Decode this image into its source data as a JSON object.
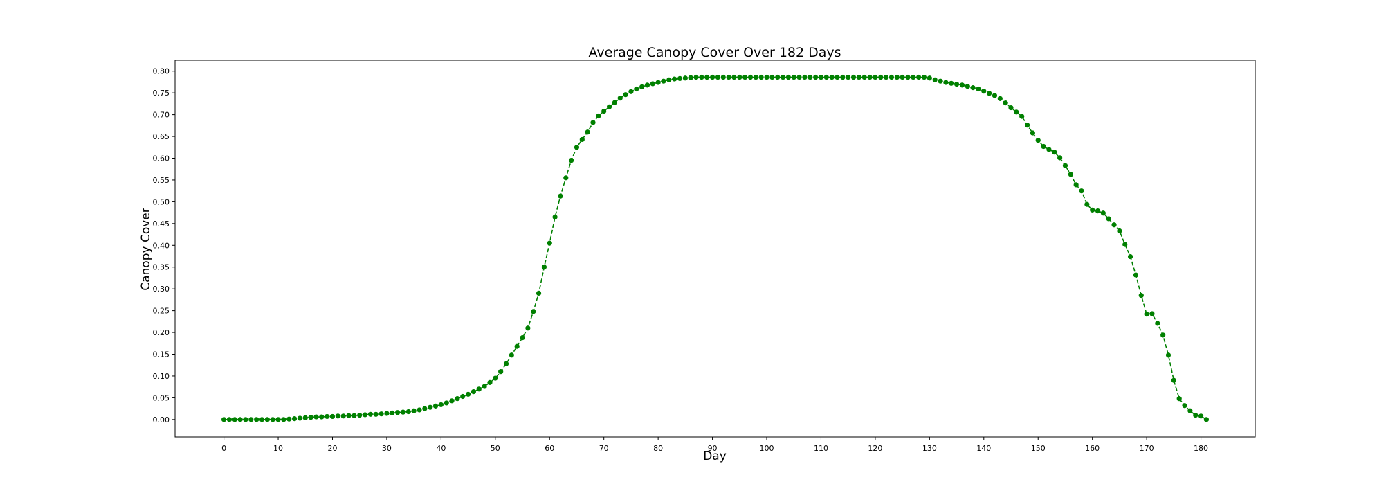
{
  "chart_data": {
    "type": "line",
    "title": "Average Canopy Cover Over 182 Days",
    "xlabel": "Day",
    "ylabel": "Canopy Cover",
    "xlim": [
      -9,
      190
    ],
    "ylim": [
      -0.04,
      0.825
    ],
    "xticks": [
      "0",
      "10",
      "20",
      "30",
      "40",
      "50",
      "60",
      "70",
      "80",
      "90",
      "100",
      "110",
      "120",
      "130",
      "140",
      "150",
      "160",
      "170",
      "180"
    ],
    "yticks": [
      "0.00",
      "0.05",
      "0.10",
      "0.15",
      "0.20",
      "0.25",
      "0.30",
      "0.35",
      "0.40",
      "0.45",
      "0.50",
      "0.55",
      "0.60",
      "0.65",
      "0.70",
      "0.75",
      "0.80"
    ],
    "grid": false,
    "legend": "none",
    "line_style": "dashed",
    "marker": "circle",
    "color": "#008000",
    "series": [
      {
        "x": [
          0,
          1,
          2,
          3,
          4,
          5,
          6,
          7,
          8,
          9,
          10,
          11,
          12,
          13,
          14,
          15,
          16,
          17,
          18,
          19,
          20,
          21,
          22,
          23,
          24,
          25,
          26,
          27,
          28,
          29,
          30,
          31,
          32,
          33,
          34,
          35,
          36,
          37,
          38,
          39,
          40,
          41,
          42,
          43,
          44,
          45,
          46,
          47,
          48,
          49,
          50,
          51,
          52,
          53,
          54,
          55,
          56,
          57,
          58,
          59,
          60,
          61,
          62,
          63,
          64,
          65,
          66,
          67,
          68,
          69,
          70,
          71,
          72,
          73,
          74,
          75,
          76,
          77,
          78,
          79,
          80,
          81,
          82,
          83,
          84,
          85,
          86,
          87,
          88,
          89,
          90,
          91,
          92,
          93,
          94,
          95,
          96,
          97,
          98,
          99,
          100,
          101,
          102,
          103,
          104,
          105,
          106,
          107,
          108,
          109,
          110,
          111,
          112,
          113,
          114,
          115,
          116,
          117,
          118,
          119,
          120,
          121,
          122,
          123,
          124,
          125,
          126,
          127,
          128,
          129,
          130,
          131,
          132,
          133,
          134,
          135,
          136,
          137,
          138,
          139,
          140,
          141,
          142,
          143,
          144,
          145,
          146,
          147,
          148,
          149,
          150,
          151,
          152,
          153,
          154,
          155,
          156,
          157,
          158,
          159,
          160,
          161,
          162,
          163,
          164,
          165,
          166,
          167,
          168,
          169,
          170,
          171,
          172,
          173,
          174,
          175,
          176,
          177,
          178,
          179,
          180,
          181
        ],
        "y": [
          0,
          0,
          0,
          0,
          0,
          0,
          0,
          0,
          0,
          0,
          0,
          0,
          0.001,
          0.002,
          0.003,
          0.004,
          0.005,
          0.006,
          0.006,
          0.007,
          0.007,
          0.008,
          0.008,
          0.009,
          0.009,
          0.01,
          0.011,
          0.012,
          0.012,
          0.013,
          0.014,
          0.015,
          0.016,
          0.017,
          0.018,
          0.02,
          0.022,
          0.025,
          0.028,
          0.031,
          0.034,
          0.038,
          0.043,
          0.048,
          0.053,
          0.058,
          0.064,
          0.07,
          0.076,
          0.085,
          0.095,
          0.11,
          0.128,
          0.148,
          0.168,
          0.188,
          0.21,
          0.248,
          0.29,
          0.35,
          0.405,
          0.465,
          0.513,
          0.555,
          0.595,
          0.625,
          0.643,
          0.66,
          0.682,
          0.697,
          0.708,
          0.718,
          0.728,
          0.738,
          0.746,
          0.753,
          0.759,
          0.764,
          0.768,
          0.771,
          0.774,
          0.777,
          0.78,
          0.782,
          0.783,
          0.784,
          0.785,
          0.786,
          0.786,
          0.786,
          0.786,
          0.786,
          0.786,
          0.786,
          0.786,
          0.786,
          0.786,
          0.786,
          0.786,
          0.786,
          0.786,
          0.786,
          0.786,
          0.786,
          0.786,
          0.786,
          0.786,
          0.786,
          0.786,
          0.786,
          0.786,
          0.786,
          0.786,
          0.786,
          0.786,
          0.786,
          0.786,
          0.786,
          0.786,
          0.786,
          0.786,
          0.786,
          0.786,
          0.786,
          0.786,
          0.786,
          0.786,
          0.786,
          0.786,
          0.786,
          0.784,
          0.78,
          0.777,
          0.774,
          0.772,
          0.77,
          0.768,
          0.765,
          0.762,
          0.759,
          0.754,
          0.749,
          0.744,
          0.737,
          0.727,
          0.716,
          0.706,
          0.696,
          0.676,
          0.658,
          0.641,
          0.627,
          0.62,
          0.614,
          0.601,
          0.583,
          0.563,
          0.539,
          0.525,
          0.494,
          0.481,
          0.479,
          0.474,
          0.461,
          0.447,
          0.433,
          0.402,
          0.374,
          0.332,
          0.285,
          0.242,
          0.243,
          0.221,
          0.194,
          0.148,
          0.09,
          0.048,
          0.032,
          0.02,
          0.01,
          0.008,
          0
        ]
      }
    ]
  }
}
